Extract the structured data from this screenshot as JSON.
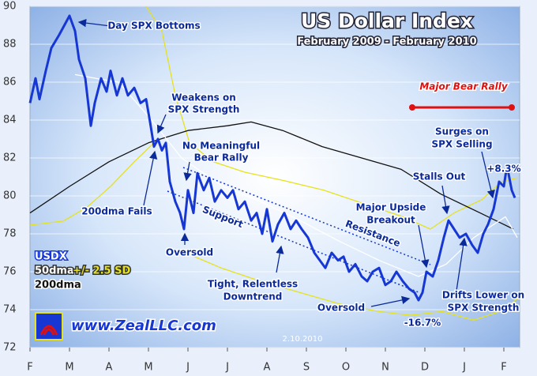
{
  "chart_data": {
    "type": "line",
    "title": "US Dollar Index",
    "subtitle": "February 2009 - February 2010",
    "xlim": [
      0,
      12.4
    ],
    "xticks": [
      {
        "value": 0,
        "label": "F"
      },
      {
        "value": 1,
        "label": "M"
      },
      {
        "value": 2,
        "label": "A"
      },
      {
        "value": 3,
        "label": "M"
      },
      {
        "value": 4,
        "label": "J"
      },
      {
        "value": 5,
        "label": "J"
      },
      {
        "value": 6,
        "label": "A"
      },
      {
        "value": 7,
        "label": "S"
      },
      {
        "value": 8,
        "label": "O"
      },
      {
        "value": 9,
        "label": "N"
      },
      {
        "value": 10,
        "label": "D"
      },
      {
        "value": 11,
        "label": "J"
      },
      {
        "value": 12,
        "label": "F"
      }
    ],
    "ylim": [
      72,
      90
    ],
    "yticks": [
      72,
      74,
      76,
      78,
      80,
      82,
      84,
      86,
      88,
      90
    ],
    "grid": true,
    "series": [
      {
        "name": "USDX",
        "color": "#1637d4",
        "x": [
          0,
          0.14,
          0.24,
          0.4,
          0.54,
          0.74,
          1.0,
          1.14,
          1.24,
          1.4,
          1.54,
          1.64,
          1.8,
          1.94,
          2.04,
          2.2,
          2.34,
          2.48,
          2.64,
          2.8,
          2.94,
          3.04,
          3.14,
          3.24,
          3.34,
          3.44,
          3.54,
          3.68,
          3.8,
          3.9,
          4.0,
          4.14,
          4.24,
          4.4,
          4.54,
          4.68,
          4.84,
          5.0,
          5.14,
          5.28,
          5.44,
          5.6,
          5.74,
          5.88,
          6.0,
          6.14,
          6.28,
          6.44,
          6.6,
          6.74,
          6.88,
          7.04,
          7.2,
          7.34,
          7.48,
          7.64,
          7.8,
          7.94,
          8.08,
          8.24,
          8.4,
          8.54,
          8.68,
          8.84,
          9.0,
          9.14,
          9.28,
          9.44,
          9.6,
          9.74,
          9.84,
          9.94,
          10.04,
          10.2,
          10.34,
          10.48,
          10.6,
          10.74,
          10.88,
          11.04,
          11.2,
          11.34,
          11.48,
          11.6,
          11.74,
          11.88,
          12.0,
          12.08,
          12.2,
          12.28
        ],
        "values": [
          84.9,
          86.2,
          85.1,
          86.6,
          87.8,
          88.5,
          89.5,
          88.7,
          87.2,
          86.2,
          83.7,
          84.9,
          86.2,
          85.5,
          86.6,
          85.3,
          86.2,
          85.3,
          85.7,
          84.9,
          85.1,
          83.9,
          82.6,
          83.0,
          82.4,
          82.8,
          80.75,
          79.7,
          79.1,
          78.25,
          80.3,
          79.1,
          81.2,
          80.3,
          80.95,
          79.7,
          80.3,
          79.9,
          80.3,
          79.3,
          79.7,
          78.7,
          79.1,
          78.0,
          79.3,
          77.6,
          78.5,
          79.1,
          78.25,
          78.7,
          78.25,
          77.8,
          77.0,
          76.6,
          76.2,
          77.0,
          76.6,
          76.8,
          76.0,
          76.4,
          75.75,
          75.5,
          76.0,
          76.2,
          75.3,
          75.5,
          76.0,
          75.5,
          75.1,
          74.9,
          74.5,
          74.9,
          76.0,
          75.75,
          76.6,
          77.8,
          78.7,
          78.25,
          77.8,
          78.0,
          77.4,
          77.0,
          78.0,
          78.5,
          79.3,
          80.75,
          80.5,
          81.6,
          80.3,
          79.9
        ]
      },
      {
        "name": "50dma",
        "color": "#ffffff",
        "x": [
          1.14,
          1.74,
          2.24,
          3.04,
          3.84,
          4.84,
          5.84,
          6.84,
          7.84,
          8.84,
          9.84,
          10.54,
          11.24,
          12.04,
          12.34
        ],
        "values": [
          86.4,
          86.17,
          86.0,
          84.1,
          82.0,
          80.55,
          79.7,
          78.7,
          77.6,
          76.6,
          75.75,
          76.4,
          77.8,
          78.9,
          77.8
        ]
      },
      {
        "name": "200dma",
        "color": "#111111",
        "x": [
          0,
          1,
          2,
          3,
          4,
          5,
          5.6,
          6.4,
          7.4,
          8.4,
          9.4,
          10.4,
          11.4,
          12.24
        ],
        "values": [
          79.1,
          80.5,
          81.8,
          82.8,
          83.45,
          83.7,
          83.9,
          83.45,
          82.6,
          82.0,
          81.4,
          80.1,
          79.1,
          78.25
        ]
      }
    ],
    "bands": {
      "name": "+/- 2.5 SD",
      "color": "#e6e21c",
      "upper": {
        "x": [
          2.94,
          3.34,
          3.68,
          4.04,
          4.64,
          5.44,
          6.44,
          7.44,
          8.44,
          9.44,
          10.14,
          10.74,
          11.44,
          11.94,
          12.34
        ],
        "values": [
          90,
          88.7,
          85.3,
          82.8,
          81.8,
          81.25,
          80.8,
          80.3,
          79.6,
          78.9,
          78.25,
          79.1,
          79.8,
          80.75,
          80.95
        ]
      },
      "lower": {
        "x": [
          0,
          0.84,
          1.44,
          2.04,
          2.64,
          3.14,
          null,
          3.94,
          4.84,
          5.84,
          6.84,
          7.84,
          8.84,
          9.64,
          10.44,
          11.24,
          12.04,
          12.34
        ],
        "values": [
          78.46,
          78.67,
          79.4,
          80.5,
          81.8,
          82.8,
          null,
          77.0,
          76.2,
          75.5,
          74.9,
          74.3,
          73.9,
          73.7,
          73.9,
          73.45,
          74.0,
          74.6
        ]
      }
    },
    "annotations": [
      [
        "Day SPX Bottoms"
      ],
      [
        "Weakens on",
        "SPX Strength"
      ],
      [
        "No Meaningful",
        "Bear Rally"
      ],
      [
        "200dma Fails"
      ],
      [
        "Oversold"
      ],
      [
        "Support"
      ],
      [
        "Resistance"
      ],
      [
        "Tight, Relentless",
        "Downtrend"
      ],
      [
        "Oversold"
      ],
      [
        "-16.7%"
      ],
      [
        "Major Upside",
        "Breakout"
      ],
      [
        "Stalls Out"
      ],
      [
        "Surges on",
        "SPX Selling"
      ],
      [
        "+8.3%"
      ],
      [
        "Drifts Lower on",
        "SPX Strength"
      ]
    ],
    "highlight": "Major Bear Rally",
    "website": "www.ZealLLC.com",
    "date_stamp": "2.10.2010"
  }
}
